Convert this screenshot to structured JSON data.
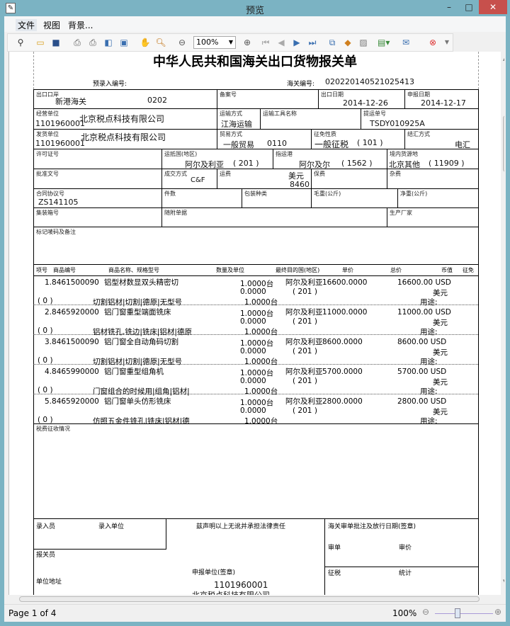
{
  "window": {
    "title": "预览"
  },
  "menu": [
    "文件",
    "视图",
    "背景..."
  ],
  "toolbar": {
    "zoom": "100%"
  },
  "doc": {
    "title": "中华人民共和国海关出口货物报关单",
    "pre_entry_label": "预录入编号:",
    "customs_no_label": "海关编号:",
    "customs_no": "020220140521025413",
    "f": {
      "exit_port_l": "出口口岸",
      "exit_port": "新港海关",
      "exit_port_code": "0202",
      "record_l": "备案号",
      "exit_date_l": "出口日期",
      "exit_date": "2014-12-26",
      "decl_date_l": "申报日期",
      "decl_date": "2014-12-17",
      "operator_l": "经营单位",
      "operator_code": "1101960001",
      "operator": "北京税点科技有限公司",
      "transport_l": "运输方式",
      "transport": "江海运输",
      "vehicle_l": "运输工具名称",
      "bill_l": "提运单号",
      "bill": "TSDY010925A",
      "shipper_l": "发货单位",
      "shipper_code": "1101960001",
      "shipper": "北京税点科技有限公司",
      "trade_l": "贸易方式",
      "trade": "一般贸易",
      "trade_code": "0110",
      "levy_l": "征免性质",
      "levy": "一般征税",
      "levy_code": "( 101 )",
      "settle_l": "结汇方式",
      "settle": "电汇",
      "license_l": "许可证号",
      "country_l": "运抵国(地区)",
      "country": "阿尔及利亚",
      "country_code": "( 201 )",
      "port_l": "指运港",
      "port": "阿尔及尔",
      "port_code": "( 1562 )",
      "source_l": "境内货源地",
      "source": "北京其他",
      "source_code": "( 11909 )",
      "approval_l": "批准文号",
      "deal_l": "成交方式",
      "deal": "C&F",
      "freight_l": "运费",
      "freight_cur": "美元",
      "freight": "8460",
      "insurance_l": "保费",
      "misc_l": "杂费",
      "contract_l": "合同协议号",
      "contract": "ZS141105",
      "pieces_l": "件数",
      "pack_l": "包装种类",
      "gross_l": "毛重(公斤)",
      "net_l": "净重(公斤)",
      "container_l": "集装箱号",
      "docs_l": "随附单据",
      "maker_l": "生产厂家",
      "marks_l": "标记唛码及备注"
    },
    "headers": [
      "项号",
      "商品编号",
      "商品名称、规格型号",
      "数量及单位",
      "最终目的国(地区)",
      "单价",
      "总价",
      "币值",
      "征免"
    ],
    "items": [
      {
        "no": "1.8461500090",
        "name": "铝型材数显双头精密切",
        "spec": "切割铝材|切割|德原|无型号",
        "qty1": "1.0000台",
        "qty2": "0.0000",
        "qty3": "1.0000台",
        "dest": "阿尔及利亚",
        "unit": "16600.0000",
        "dest_code": "( 201 )",
        "total": "16600.00 USD",
        "cur": "美元",
        "use": "用途:",
        "sub": "(   0   )"
      },
      {
        "no": "2.8465920000",
        "name": "铝门窗重型端面铣床",
        "spec": "铝材铣孔,铣边|铣床|铝材|德原",
        "qty1": "1.0000台",
        "qty2": "0.0000",
        "qty3": "1.0000台",
        "dest": "阿尔及利亚",
        "unit": "11000.0000",
        "dest_code": "( 201 )",
        "total": "11000.00 USD",
        "cur": "美元",
        "use": "用途:",
        "sub": "(   0   )"
      },
      {
        "no": "3.8461500090",
        "name": "铝门窗全自动角码切割",
        "spec": "切割铝材|切割|德原|无型号",
        "qty1": "1.0000台",
        "qty2": "0.0000",
        "qty3": "1.0000台",
        "dest": "阿尔及利亚",
        "unit": "8600.0000",
        "dest_code": "( 201 )",
        "total": "8600.00 USD",
        "cur": "美元",
        "use": "用途:",
        "sub": "(   0   )"
      },
      {
        "no": "4.8465990000",
        "name": "铝门窗重型组角机",
        "spec": "门窗组合的时候用|组角|铝材|",
        "qty1": "1.0000台",
        "qty2": "0.0000",
        "qty3": "1.0000台",
        "dest": "阿尔及利亚",
        "unit": "5700.0000",
        "dest_code": "( 201 )",
        "total": "5700.00 USD",
        "cur": "美元",
        "use": "用途:",
        "sub": "(   0   )"
      },
      {
        "no": "5.8465920000",
        "name": "铝门窗单头仿形铣床",
        "spec": "仿照五金件铣孔|铣床|铝材|德",
        "qty1": "1.0000台",
        "qty2": "0.0000",
        "qty3": "1.0000台",
        "dest": "阿尔及利亚",
        "unit": "2800.0000",
        "dest_code": "( 201 )",
        "total": "2800.00 USD",
        "cur": "美元",
        "use": "用途:",
        "sub": "(   0   )"
      }
    ],
    "tax_l": "税费征收情况",
    "bottom": {
      "entry_clerk": "录入员",
      "entry_unit": "录入单位",
      "declare": "兹声明以上无讹并承担法律责任",
      "customs_approval": "海关审单批注及放行日期(签章)",
      "review": "审单",
      "price": "审价",
      "broker": "报关员",
      "decl_unit": "申报单位(签章)",
      "decl_code": "1101960001",
      "decl_name": "北京税点科技有限公司",
      "address": "单位地址",
      "tax": "征税",
      "stats": "统计"
    }
  },
  "status": {
    "page": "Page 1 of 4",
    "zoom": "100%"
  }
}
